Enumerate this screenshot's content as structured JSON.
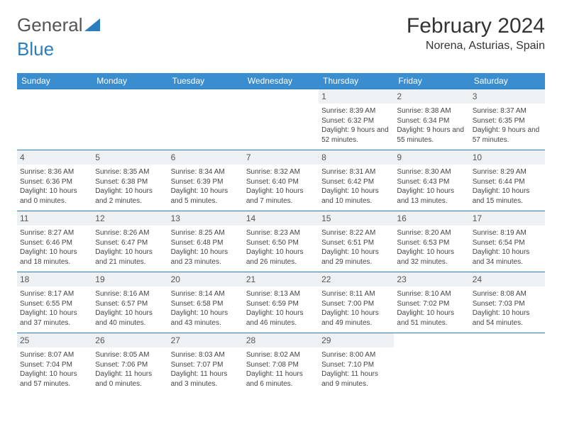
{
  "logo": {
    "part1": "General",
    "part2": "Blue"
  },
  "title": "February 2024",
  "location": "Norena, Asturias, Spain",
  "colors": {
    "header_bg": "#3a8dcf",
    "accent": "#2a7dbf",
    "daynum_bg": "#eef1f3",
    "text": "#444444",
    "page_bg": "#ffffff"
  },
  "day_headers": [
    "Sunday",
    "Monday",
    "Tuesday",
    "Wednesday",
    "Thursday",
    "Friday",
    "Saturday"
  ],
  "weeks": [
    [
      {
        "day": "",
        "lines": []
      },
      {
        "day": "",
        "lines": []
      },
      {
        "day": "",
        "lines": []
      },
      {
        "day": "",
        "lines": []
      },
      {
        "day": "1",
        "lines": [
          "Sunrise: 8:39 AM",
          "Sunset: 6:32 PM",
          "Daylight: 9 hours and 52 minutes."
        ]
      },
      {
        "day": "2",
        "lines": [
          "Sunrise: 8:38 AM",
          "Sunset: 6:34 PM",
          "Daylight: 9 hours and 55 minutes."
        ]
      },
      {
        "day": "3",
        "lines": [
          "Sunrise: 8:37 AM",
          "Sunset: 6:35 PM",
          "Daylight: 9 hours and 57 minutes."
        ]
      }
    ],
    [
      {
        "day": "4",
        "lines": [
          "Sunrise: 8:36 AM",
          "Sunset: 6:36 PM",
          "Daylight: 10 hours and 0 minutes."
        ]
      },
      {
        "day": "5",
        "lines": [
          "Sunrise: 8:35 AM",
          "Sunset: 6:38 PM",
          "Daylight: 10 hours and 2 minutes."
        ]
      },
      {
        "day": "6",
        "lines": [
          "Sunrise: 8:34 AM",
          "Sunset: 6:39 PM",
          "Daylight: 10 hours and 5 minutes."
        ]
      },
      {
        "day": "7",
        "lines": [
          "Sunrise: 8:32 AM",
          "Sunset: 6:40 PM",
          "Daylight: 10 hours and 7 minutes."
        ]
      },
      {
        "day": "8",
        "lines": [
          "Sunrise: 8:31 AM",
          "Sunset: 6:42 PM",
          "Daylight: 10 hours and 10 minutes."
        ]
      },
      {
        "day": "9",
        "lines": [
          "Sunrise: 8:30 AM",
          "Sunset: 6:43 PM",
          "Daylight: 10 hours and 13 minutes."
        ]
      },
      {
        "day": "10",
        "lines": [
          "Sunrise: 8:29 AM",
          "Sunset: 6:44 PM",
          "Daylight: 10 hours and 15 minutes."
        ]
      }
    ],
    [
      {
        "day": "11",
        "lines": [
          "Sunrise: 8:27 AM",
          "Sunset: 6:46 PM",
          "Daylight: 10 hours and 18 minutes."
        ]
      },
      {
        "day": "12",
        "lines": [
          "Sunrise: 8:26 AM",
          "Sunset: 6:47 PM",
          "Daylight: 10 hours and 21 minutes."
        ]
      },
      {
        "day": "13",
        "lines": [
          "Sunrise: 8:25 AM",
          "Sunset: 6:48 PM",
          "Daylight: 10 hours and 23 minutes."
        ]
      },
      {
        "day": "14",
        "lines": [
          "Sunrise: 8:23 AM",
          "Sunset: 6:50 PM",
          "Daylight: 10 hours and 26 minutes."
        ]
      },
      {
        "day": "15",
        "lines": [
          "Sunrise: 8:22 AM",
          "Sunset: 6:51 PM",
          "Daylight: 10 hours and 29 minutes."
        ]
      },
      {
        "day": "16",
        "lines": [
          "Sunrise: 8:20 AM",
          "Sunset: 6:53 PM",
          "Daylight: 10 hours and 32 minutes."
        ]
      },
      {
        "day": "17",
        "lines": [
          "Sunrise: 8:19 AM",
          "Sunset: 6:54 PM",
          "Daylight: 10 hours and 34 minutes."
        ]
      }
    ],
    [
      {
        "day": "18",
        "lines": [
          "Sunrise: 8:17 AM",
          "Sunset: 6:55 PM",
          "Daylight: 10 hours and 37 minutes."
        ]
      },
      {
        "day": "19",
        "lines": [
          "Sunrise: 8:16 AM",
          "Sunset: 6:57 PM",
          "Daylight: 10 hours and 40 minutes."
        ]
      },
      {
        "day": "20",
        "lines": [
          "Sunrise: 8:14 AM",
          "Sunset: 6:58 PM",
          "Daylight: 10 hours and 43 minutes."
        ]
      },
      {
        "day": "21",
        "lines": [
          "Sunrise: 8:13 AM",
          "Sunset: 6:59 PM",
          "Daylight: 10 hours and 46 minutes."
        ]
      },
      {
        "day": "22",
        "lines": [
          "Sunrise: 8:11 AM",
          "Sunset: 7:00 PM",
          "Daylight: 10 hours and 49 minutes."
        ]
      },
      {
        "day": "23",
        "lines": [
          "Sunrise: 8:10 AM",
          "Sunset: 7:02 PM",
          "Daylight: 10 hours and 51 minutes."
        ]
      },
      {
        "day": "24",
        "lines": [
          "Sunrise: 8:08 AM",
          "Sunset: 7:03 PM",
          "Daylight: 10 hours and 54 minutes."
        ]
      }
    ],
    [
      {
        "day": "25",
        "lines": [
          "Sunrise: 8:07 AM",
          "Sunset: 7:04 PM",
          "Daylight: 10 hours and 57 minutes."
        ]
      },
      {
        "day": "26",
        "lines": [
          "Sunrise: 8:05 AM",
          "Sunset: 7:06 PM",
          "Daylight: 11 hours and 0 minutes."
        ]
      },
      {
        "day": "27",
        "lines": [
          "Sunrise: 8:03 AM",
          "Sunset: 7:07 PM",
          "Daylight: 11 hours and 3 minutes."
        ]
      },
      {
        "day": "28",
        "lines": [
          "Sunrise: 8:02 AM",
          "Sunset: 7:08 PM",
          "Daylight: 11 hours and 6 minutes."
        ]
      },
      {
        "day": "29",
        "lines": [
          "Sunrise: 8:00 AM",
          "Sunset: 7:10 PM",
          "Daylight: 11 hours and 9 minutes."
        ]
      },
      {
        "day": "",
        "lines": []
      },
      {
        "day": "",
        "lines": []
      }
    ]
  ]
}
